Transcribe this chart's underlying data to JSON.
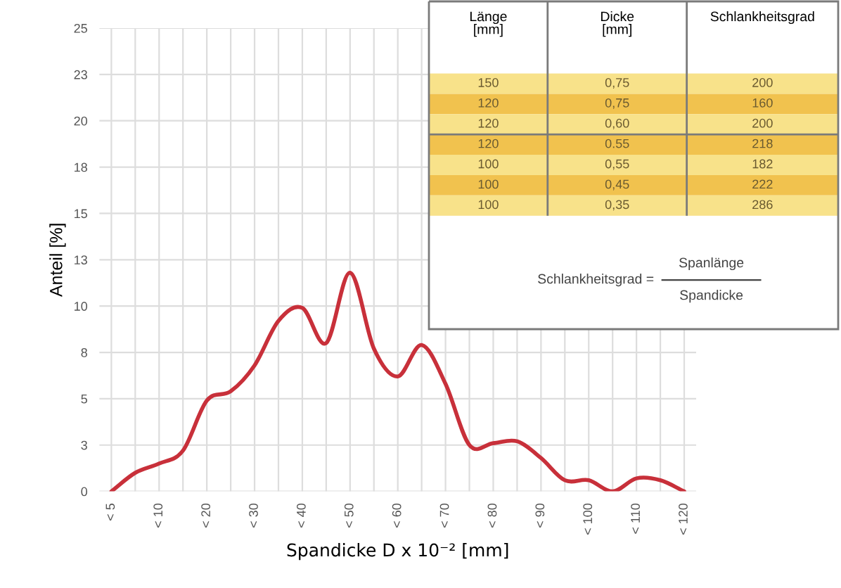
{
  "chart_data": [
    {
      "type": "line",
      "xlabel": "Spandicke D x 10⁻² [mm]",
      "ylabel": "Anteil [%]",
      "categories": [
        "< 5",
        null,
        "< 10",
        null,
        "< 20",
        null,
        "< 30",
        null,
        "< 40",
        null,
        "< 50",
        null,
        "< 60",
        null,
        "< 70",
        null,
        "< 80",
        null,
        "< 90",
        null,
        "< 100",
        null,
        "< 110",
        null,
        "< 120"
      ],
      "series": [
        {
          "color": "#c8303a",
          "values": [
            0,
            1.0,
            1.5,
            2.2,
            4.9,
            5.4,
            6.8,
            9.2,
            9.9,
            8.0,
            11.8,
            7.7,
            6.2,
            7.9,
            5.8,
            2.5,
            2.6,
            2.7,
            1.8,
            0.6,
            0.6,
            0,
            0.7,
            0.6,
            0
          ]
        }
      ],
      "ylim": [
        0,
        25
      ],
      "yticks": [
        0,
        {
          "value": 2.5,
          "label": "3"
        },
        5,
        {
          "value": 7.5,
          "label": "8"
        },
        10,
        {
          "value": 12.5,
          "label": "13"
        },
        15,
        {
          "value": 17.5,
          "label": "18"
        },
        20,
        {
          "value": 22.5,
          "label": "23"
        },
        25
      ],
      "grid": true,
      "marker": "none",
      "line_style": "solid"
    },
    {
      "type": "other",
      "categories": [
        "Länge\n[mm]",
        "Dicke\n[mm]",
        "Schlankheitsgrad"
      ],
      "cells": [
        [
          "150",
          "0,75",
          "200"
        ],
        [
          "120",
          "0,75",
          "160"
        ],
        [
          "120",
          "0,60",
          "200"
        ],
        [
          "120",
          "0.55",
          "218"
        ],
        [
          "100",
          "0,55",
          "182"
        ],
        [
          "100",
          "0,45",
          "222"
        ],
        [
          "100",
          "0,35",
          "286"
        ]
      ],
      "colors": [
        "#f8e28a",
        "#f1c24e",
        "#f8e28a",
        "#f1c24e",
        "#f8e28a",
        "#f1c24e",
        "#f8e28a"
      ],
      "annotations": [
        "Schlankheitsgrad =",
        "Spanlänge",
        "Spandicke"
      ]
    }
  ]
}
